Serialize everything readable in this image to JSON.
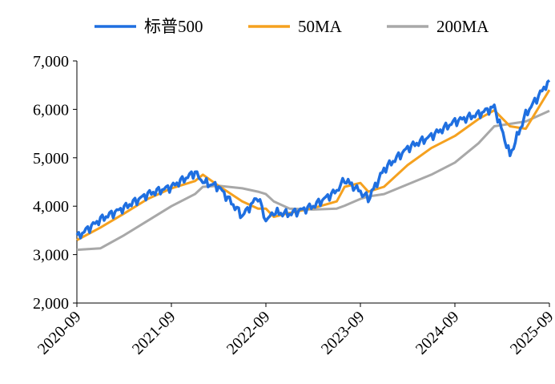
{
  "chart_data": {
    "type": "line",
    "title": "",
    "xlabel": "",
    "ylabel": "",
    "ylim": [
      2000,
      7000
    ],
    "yticks": [
      "2,000",
      "3,000",
      "4,000",
      "5,000",
      "6,000",
      "7,000"
    ],
    "ytick_values": [
      2000,
      3000,
      4000,
      5000,
      6000,
      7000
    ],
    "xticks": [
      "2020-09",
      "2021-09",
      "2022-09",
      "2023-09",
      "2024-09",
      "2025-09"
    ],
    "x_range": [
      "2020-09",
      "2025-09"
    ],
    "grid": false,
    "legend_position": "top",
    "x": [
      "2020-09",
      "2020-12",
      "2021-03",
      "2021-06",
      "2021-09",
      "2021-12",
      "2022-01",
      "2022-03",
      "2022-06",
      "2022-08",
      "2022-09",
      "2022-10",
      "2022-12",
      "2023-03",
      "2023-06",
      "2023-07",
      "2023-09",
      "2023-10",
      "2023-12",
      "2024-03",
      "2024-06",
      "2024-09",
      "2024-12",
      "2025-02",
      "2025-04",
      "2025-06",
      "2025-09"
    ],
    "series": [
      {
        "name": "标普500",
        "color": "#1f6fe0",
        "values": [
          3360,
          3730,
          3970,
          4250,
          4400,
          4700,
          4500,
          4400,
          3800,
          4200,
          3700,
          3870,
          3840,
          4000,
          4320,
          4550,
          4300,
          4150,
          4760,
          5200,
          5450,
          5750,
          5900,
          6050,
          5050,
          5900,
          6600
        ]
      },
      {
        "name": "50MA",
        "color": "#f5a11f",
        "values": [
          3300,
          3560,
          3850,
          4150,
          4370,
          4520,
          4650,
          4420,
          4100,
          3950,
          3950,
          3780,
          3860,
          3960,
          4100,
          4400,
          4480,
          4300,
          4400,
          4850,
          5200,
          5450,
          5800,
          5980,
          5650,
          5600,
          6400
        ]
      },
      {
        "name": "200MA",
        "color": "#a8a8a8",
        "values": [
          3100,
          3130,
          3400,
          3700,
          4000,
          4250,
          4400,
          4420,
          4370,
          4300,
          4250,
          4100,
          3950,
          3930,
          3950,
          4010,
          4150,
          4200,
          4250,
          4450,
          4650,
          4900,
          5300,
          5650,
          5700,
          5750,
          5970
        ]
      }
    ]
  }
}
